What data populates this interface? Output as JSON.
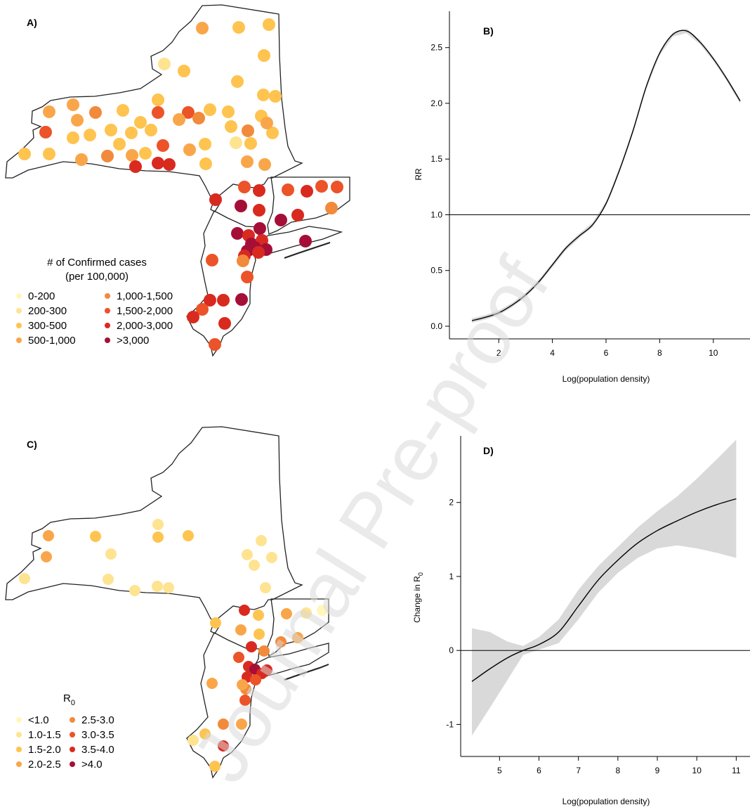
{
  "watermark": "Journal Pre-proof",
  "colors": {
    "cases": [
      "#fff7bc",
      "#fee391",
      "#fec44f",
      "#f9a64a",
      "#f28a3b",
      "#ec5328",
      "#d92a20",
      "#a50f37"
    ],
    "r0": [
      "#fff7bc",
      "#fee391",
      "#fec44f",
      "#f9a64a",
      "#f28a3b",
      "#ec5328",
      "#d92a20",
      "#a50f37"
    ],
    "band": "#d9d9d9",
    "line": "#000000"
  },
  "chart_data": [
    {
      "panel": "A)",
      "type": "map",
      "legend_title_1": "# of Confirmed cases",
      "legend_title_2": "(per 100,000)",
      "legend": [
        "0-200",
        "200-300",
        "300-500",
        "500-1,000",
        "1,000-1,500",
        "1,500-2,000",
        "2,000-3,000",
        ">3,000"
      ]
    },
    {
      "panel": "B)",
      "type": "line",
      "xlabel": "Log(population density)",
      "ylabel": "RR",
      "xlim": [
        1,
        11
      ],
      "ylim": [
        0,
        2.7
      ],
      "xticks": [
        2,
        4,
        6,
        8,
        10
      ],
      "yticks": [
        0.0,
        0.5,
        1.0,
        1.5,
        2.0,
        2.5
      ],
      "xtick_labels": [
        "2",
        "4",
        "6",
        "8",
        "10"
      ],
      "ytick_labels": [
        "0.0",
        "0.5",
        "1.0",
        "1.5",
        "2.0",
        "2.5"
      ],
      "reference_line": 1.0,
      "x": [
        1,
        1.5,
        2,
        2.5,
        3,
        3.5,
        4,
        4.5,
        5,
        5.5,
        6,
        6.5,
        7,
        7.5,
        8,
        8.5,
        9,
        9.5,
        10,
        10.5,
        11
      ],
      "y": [
        0.05,
        0.08,
        0.12,
        0.19,
        0.28,
        0.4,
        0.55,
        0.7,
        0.81,
        0.91,
        1.1,
        1.4,
        1.75,
        2.15,
        2.45,
        2.62,
        2.65,
        2.55,
        2.4,
        2.22,
        2.02
      ],
      "band": 0.02
    },
    {
      "panel": "C)",
      "type": "map",
      "legend_title": "R",
      "legend_title_sub": "0",
      "legend": [
        "<1.0",
        "1.0-1.5",
        "1.5-2.0",
        "2.0-2.5",
        "2.5-3.0",
        "3.0-3.5",
        "3.5-4.0",
        ">4.0"
      ]
    },
    {
      "panel": "D)",
      "type": "line",
      "xlabel": "Log(population density)",
      "ylabel": "Change in R",
      "ylabel_sub": "0",
      "xlim": [
        4.3,
        11.1
      ],
      "ylim": [
        -1.3,
        2.9
      ],
      "xticks": [
        5,
        6,
        7,
        8,
        9,
        10,
        11
      ],
      "yticks": [
        -1,
        0,
        1,
        2
      ],
      "xtick_labels": [
        "5",
        "6",
        "7",
        "8",
        "9",
        "10",
        "11"
      ],
      "ytick_labels": [
        "-1",
        "0",
        "1",
        "2"
      ],
      "reference_line": 0,
      "x": [
        4.3,
        4.75,
        5.2,
        5.6,
        6.0,
        6.5,
        7.0,
        7.5,
        8.0,
        8.5,
        9.0,
        9.5,
        10.0,
        10.5,
        11.0
      ],
      "y": [
        -0.42,
        -0.25,
        -0.1,
        0.0,
        0.08,
        0.25,
        0.6,
        0.95,
        1.22,
        1.45,
        1.62,
        1.75,
        1.87,
        1.97,
        2.05
      ],
      "lower": [
        -1.15,
        -0.78,
        -0.4,
        -0.06,
        0.01,
        0.1,
        0.42,
        0.78,
        1.05,
        1.25,
        1.38,
        1.42,
        1.38,
        1.32,
        1.25
      ],
      "upper": [
        0.3,
        0.25,
        0.12,
        0.06,
        0.18,
        0.42,
        0.82,
        1.14,
        1.4,
        1.66,
        1.88,
        2.08,
        2.32,
        2.58,
        2.85
      ]
    }
  ]
}
